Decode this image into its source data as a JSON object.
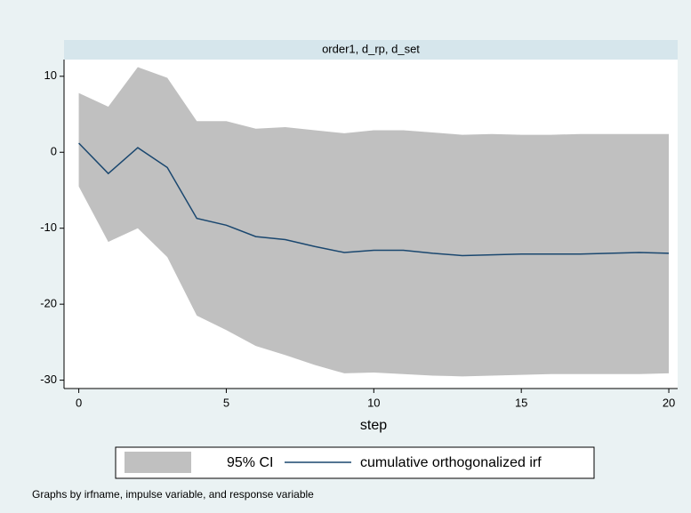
{
  "chart_data": {
    "type": "line",
    "title": "order1, d_rp, d_set",
    "xlabel": "step",
    "note": "Graphs by irfname, impulse variable, and response variable",
    "x": [
      0,
      1,
      2,
      3,
      4,
      5,
      6,
      7,
      8,
      9,
      10,
      11,
      12,
      13,
      14,
      15,
      16,
      17,
      18,
      19,
      20
    ],
    "series": [
      {
        "name": "95% CI",
        "color": "#c0c0c0",
        "upper": [
          7.8,
          6.0,
          11.2,
          9.8,
          4.1,
          4.1,
          3.1,
          3.3,
          2.9,
          2.5,
          2.9,
          2.9,
          2.6,
          2.3,
          2.4,
          2.3,
          2.3,
          2.4,
          2.4,
          2.4,
          2.4
        ],
        "lower": [
          -4.5,
          -11.8,
          -10.0,
          -13.8,
          -21.5,
          -23.4,
          -25.5,
          -26.7,
          -28.0,
          -29.1,
          -29.0,
          -29.2,
          -29.4,
          -29.5,
          -29.4,
          -29.3,
          -29.2,
          -29.2,
          -29.2,
          -29.2,
          -29.1
        ]
      },
      {
        "name": "cumulative orthogonalized irf",
        "color": "#1a476f",
        "values": [
          1.2,
          -2.8,
          0.6,
          -2.0,
          -8.7,
          -9.6,
          -11.1,
          -11.5,
          -12.4,
          -13.2,
          -12.9,
          -12.9,
          -13.3,
          -13.6,
          -13.5,
          -13.4,
          -13.4,
          -13.4,
          -13.3,
          -13.2,
          -13.3
        ]
      }
    ],
    "xlim": [
      -0.5,
      20.3
    ],
    "ylim": [
      -31.1,
      12.2
    ],
    "xticks": [
      0,
      5,
      10,
      15,
      20
    ],
    "yticks": [
      -30,
      -20,
      -10,
      0,
      10
    ]
  }
}
